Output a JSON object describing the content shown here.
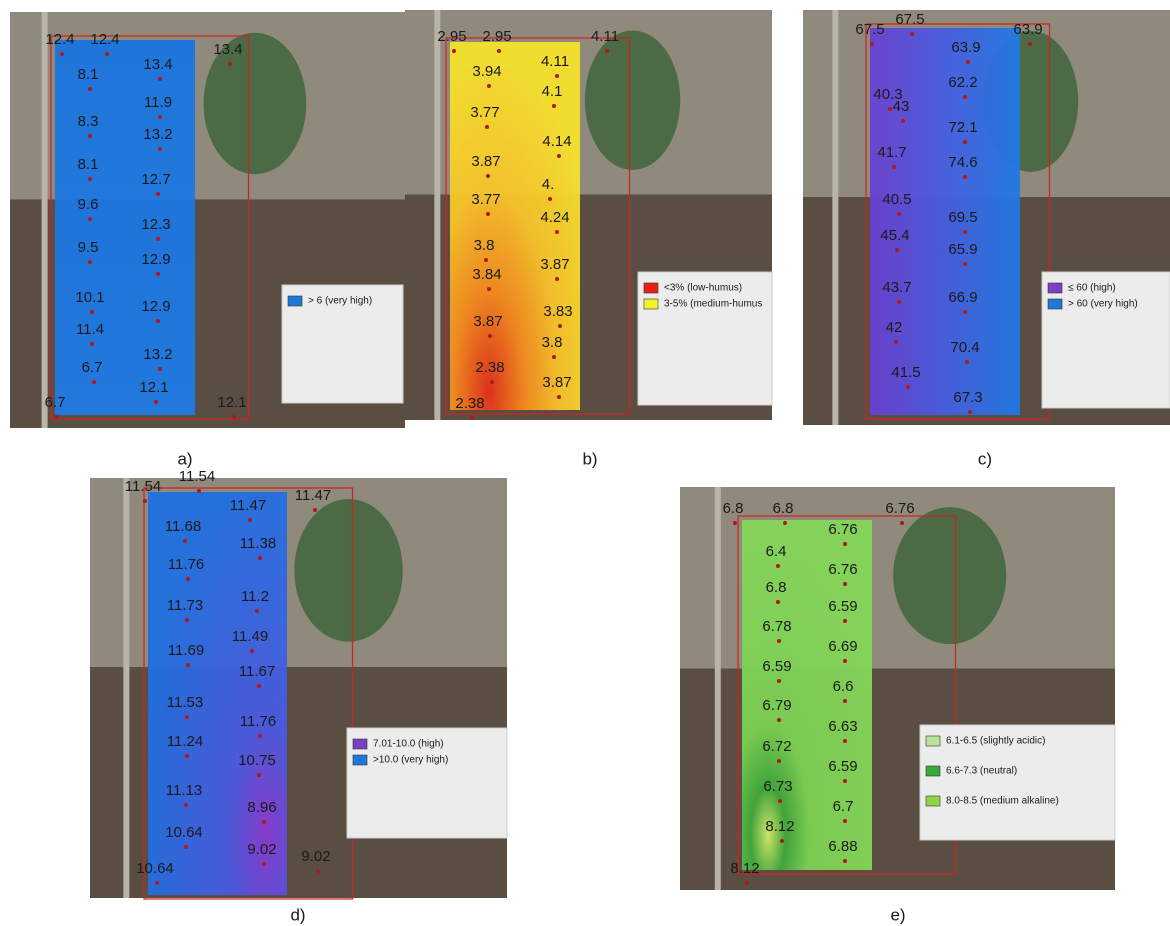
{
  "panels": [
    {
      "caption": "a)",
      "labels": [
        "12.4",
        "12.4",
        "13.4",
        "8.1",
        "13.4",
        "11.9",
        "8.3",
        "13.2",
        "8.1",
        "12.7",
        "9.6",
        "12.3",
        "9.5",
        "12.9",
        "10.1",
        "12.9",
        "11.4",
        "13.2",
        "6.7",
        "12.1",
        "6.7",
        "12.1"
      ],
      "legend": [
        {
          "label": ">  6   (very high)",
          "color": "#1f78d8"
        }
      ]
    },
    {
      "caption": "b)",
      "labels": [
        "2.95",
        "2.95",
        "4.11",
        "3.94",
        "4.11",
        "4.1",
        "3.77",
        "4.14",
        "3.87",
        "4.",
        "3.77",
        "4.24",
        "3.8",
        "3.87",
        "3.84",
        "3.83",
        "3.87",
        "3.8",
        "2.38",
        "3.87",
        "2.38"
      ],
      "legend": [
        {
          "label": "<3% (low-humus)",
          "color": "#e8201a"
        },
        {
          "label": "3-5% (medium-humus",
          "color": "#f4f02a"
        }
      ]
    },
    {
      "caption": "c)",
      "labels": [
        "67.5",
        "67.5",
        "63.9",
        "63.9",
        "40.3",
        "62.2",
        "43",
        "72.1",
        "41.7",
        "74.6",
        "40.5",
        "69.5",
        "45.4",
        "65.9",
        "43.7",
        "66.9",
        "42",
        "70.4",
        "41.5",
        "67.3"
      ],
      "legend": [
        {
          "label": "≤ 60   (high)",
          "color": "#7b3fc4"
        },
        {
          "label": "> 60   (very high)",
          "color": "#1f78d8"
        }
      ]
    },
    {
      "caption": "d)",
      "labels": [
        "11.54",
        "11.54",
        "11.47",
        "11.47",
        "11.68",
        "11.38",
        "11.76",
        "11.2",
        "11.73",
        "11.49",
        "11.69",
        "11.67",
        "11.53",
        "11.76",
        "11.24",
        "10.75",
        "11.13",
        "8.96",
        "10.64",
        "9.02",
        "10.64",
        "9.02"
      ],
      "legend": [
        {
          "label": "7.01-10.0   (high)",
          "color": "#7b3fc4"
        },
        {
          "label": ">10.0   (very high)",
          "color": "#1f78d8"
        }
      ]
    },
    {
      "caption": "e)",
      "labels": [
        "6.8",
        "6.8",
        "6.76",
        "6.76",
        "6.4",
        "6.76",
        "6.8",
        "6.59",
        "6.78",
        "6.69",
        "6.59",
        "6.6",
        "6.79",
        "6.63",
        "6.72",
        "6.59",
        "6.73",
        "6.7",
        "8.12",
        "6.88",
        "8.12"
      ],
      "legend": [
        {
          "label": "6.1-6.5 (slightly acidic)",
          "color": "#b9e39a"
        },
        {
          "label": "6.6-7.3 (neutral)",
          "color": "#3aa83a"
        },
        {
          "label": "8.0-8.5 (medium alkaline)",
          "color": "#8fd646"
        }
      ]
    }
  ]
}
